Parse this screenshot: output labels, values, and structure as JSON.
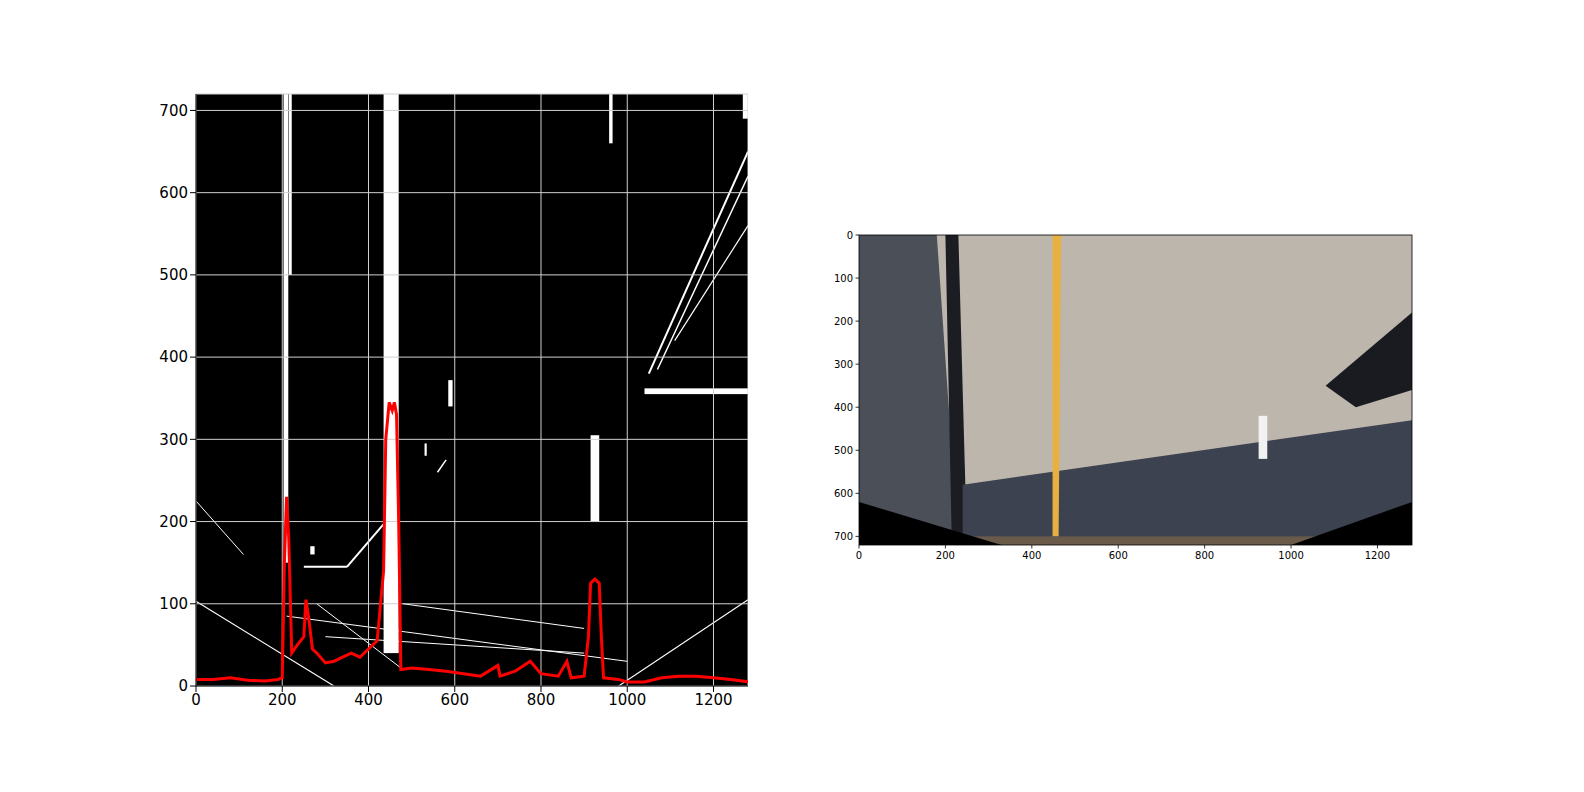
{
  "chart_data": [
    {
      "type": "line",
      "x": [
        0,
        40,
        80,
        120,
        160,
        190,
        200,
        205,
        210,
        215,
        222,
        235,
        250,
        255,
        262,
        270,
        280,
        300,
        320,
        340,
        360,
        380,
        400,
        420,
        435,
        440,
        448,
        455,
        460,
        465,
        470,
        475,
        500,
        540,
        580,
        620,
        660,
        700,
        705,
        740,
        775,
        800,
        840,
        860,
        870,
        900,
        910,
        915,
        925,
        935,
        940,
        945,
        980,
        1000,
        1040,
        1080,
        1120,
        1160,
        1200,
        1240,
        1280
      ],
      "values": [
        8,
        8,
        10,
        7,
        6,
        8,
        10,
        150,
        230,
        180,
        40,
        50,
        60,
        105,
        80,
        45,
        40,
        28,
        30,
        35,
        40,
        35,
        45,
        55,
        140,
        300,
        345,
        335,
        345,
        330,
        200,
        20,
        22,
        20,
        18,
        15,
        12,
        25,
        12,
        18,
        30,
        15,
        12,
        30,
        10,
        12,
        60,
        125,
        130,
        125,
        60,
        10,
        8,
        5,
        5,
        10,
        12,
        12,
        10,
        8,
        5
      ],
      "color": "#ff0000",
      "xlim": [
        0,
        1280
      ],
      "ylim": [
        0,
        720
      ],
      "xticks": [
        0,
        200,
        400,
        600,
        800,
        1000,
        1200
      ],
      "yticks": [
        0,
        100,
        200,
        300,
        400,
        500,
        600,
        700
      ],
      "grid": true
    },
    {
      "type": "image",
      "xlim": [
        0,
        1280
      ],
      "ylim": [
        720,
        0
      ],
      "xticks": [
        0,
        200,
        400,
        600,
        800,
        1000,
        1200
      ],
      "yticks": [
        0,
        100,
        200,
        300,
        400,
        500,
        600,
        700
      ],
      "grid": false
    }
  ]
}
